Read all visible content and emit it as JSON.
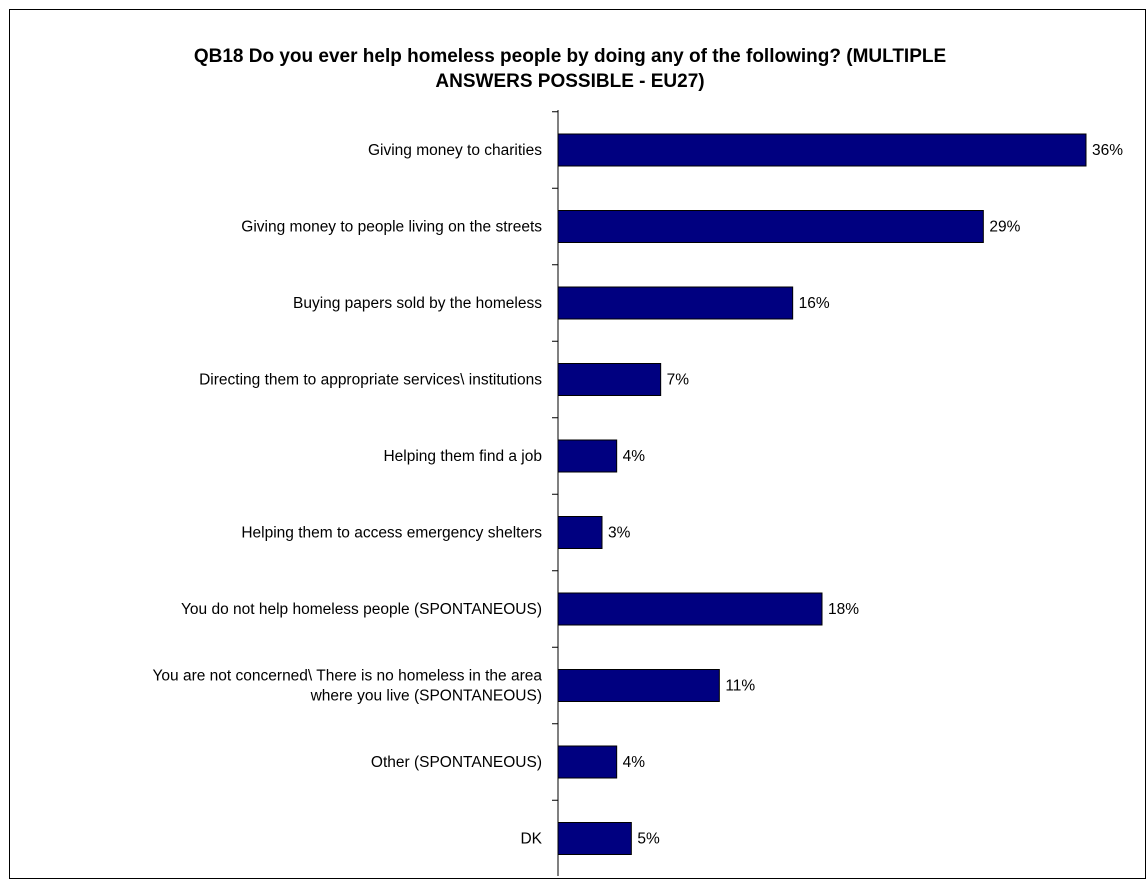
{
  "chart_data": {
    "type": "bar",
    "orientation": "horizontal",
    "title_lines": [
      "QB18 Do you ever help homeless people by doing any of the following? (MULTIPLE",
      "ANSWERS POSSIBLE - EU27)"
    ],
    "categories": [
      [
        "Giving money to charities"
      ],
      [
        "Giving money to people living on the streets"
      ],
      [
        "Buying papers sold by the homeless"
      ],
      [
        "Directing them to appropriate services\\ institutions"
      ],
      [
        "Helping them find a job"
      ],
      [
        "Helping them to access emergency shelters"
      ],
      [
        "You do not help homeless people (SPONTANEOUS)"
      ],
      [
        "You are not concerned\\ There is no homeless in the area",
        "where you live (SPONTANEOUS)"
      ],
      [
        "Other (SPONTANEOUS)"
      ],
      [
        "DK"
      ]
    ],
    "values": [
      36,
      29,
      16,
      7,
      4,
      3,
      18,
      11,
      4,
      5
    ],
    "value_labels": [
      "36%",
      "29%",
      "16%",
      "7%",
      "4%",
      "3%",
      "18%",
      "11%",
      "4%",
      "5%"
    ],
    "xlim": [
      0,
      36
    ],
    "bar_color": "#000080",
    "grid": false,
    "legend": "none"
  }
}
